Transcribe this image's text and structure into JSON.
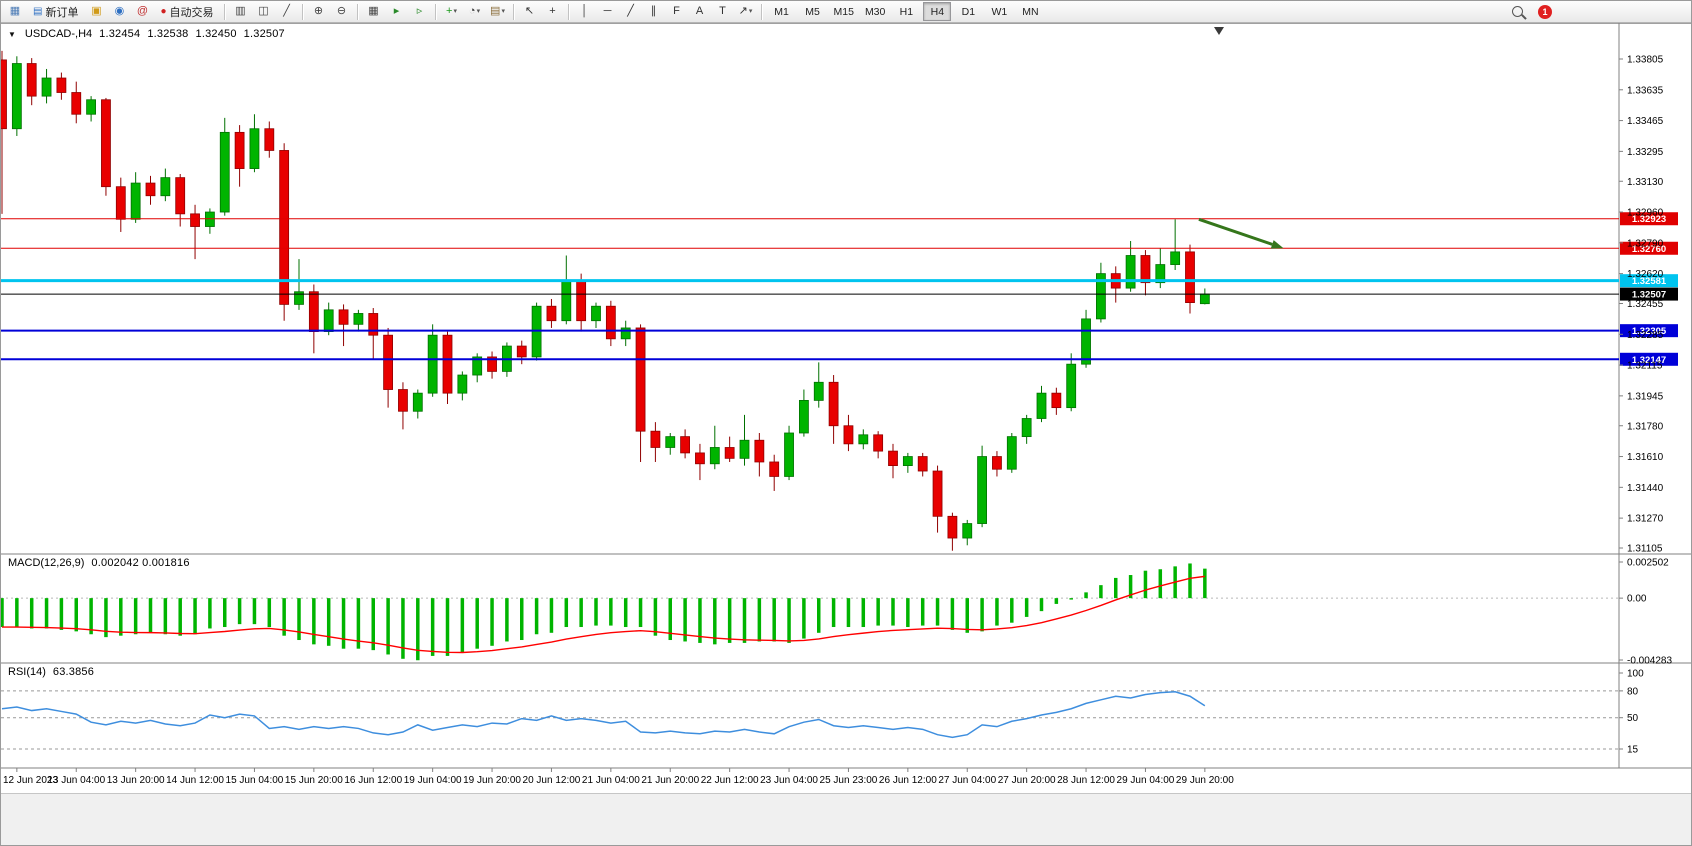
{
  "toolbar": {
    "new_order_label": "新订单",
    "autotrading_label": "自动交易",
    "timeframes": [
      "M1",
      "M5",
      "M15",
      "M30",
      "H1",
      "H4",
      "D1",
      "W1",
      "MN"
    ],
    "active_timeframe": "H4",
    "notification_count": "1",
    "items": [
      {
        "type": "icon",
        "name": "new-chart-icon",
        "glyph": "▦",
        "color": "#4a7ab5"
      },
      {
        "type": "labeled",
        "name": "new-order-button",
        "glyph": "▤",
        "glyph_color": "#2d6fc2",
        "label": "新订单"
      },
      {
        "type": "icon",
        "name": "mql5-community-icon",
        "glyph": "▣",
        "color": "#d09a18"
      },
      {
        "type": "icon",
        "name": "profile-icon",
        "glyph": "◉",
        "color": "#2d6fc2"
      },
      {
        "type": "icon",
        "name": "metaquotes-icon",
        "glyph": "@",
        "color": "#c03030"
      },
      {
        "type": "labeled",
        "name": "autotrading-button",
        "glyph": "●",
        "glyph_color": "#d02020",
        "label": "自动交易"
      },
      {
        "type": "sep"
      },
      {
        "type": "icon",
        "name": "bar-chart-icon",
        "glyph": "▥",
        "color": "#444444"
      },
      {
        "type": "icon",
        "name": "candlestick-chart-icon",
        "glyph": "◫",
        "color": "#444444"
      },
      {
        "type": "icon",
        "name": "line-chart-icon",
        "glyph": "╱",
        "color": "#444444"
      },
      {
        "type": "sep"
      },
      {
        "type": "icon",
        "name": "zoom-in-icon",
        "glyph": "⊕",
        "color": "#444444"
      },
      {
        "type": "icon",
        "name": "zoom-out-icon",
        "glyph": "⊖",
        "color": "#444444"
      },
      {
        "type": "sep"
      },
      {
        "type": "icon",
        "name": "tile-windows-icon",
        "glyph": "▦",
        "color": "#444444"
      },
      {
        "type": "icon",
        "name": "auto-scroll-icon",
        "glyph": "▸",
        "color": "#2a8a2a"
      },
      {
        "type": "icon",
        "name": "chart-shift-icon",
        "glyph": "▹",
        "color": "#2a8a2a"
      },
      {
        "type": "sep"
      },
      {
        "type": "icon",
        "name": "indicators-icon",
        "glyph": "+",
        "color": "#1a9a1a",
        "dropdown": true
      },
      {
        "type": "icon",
        "name": "periods-icon",
        "glyph": "◔",
        "color": "#444444",
        "dropdown": true
      },
      {
        "type": "icon",
        "name": "templates-icon",
        "glyph": "▤",
        "color": "#8a6d3b",
        "dropdown": true
      },
      {
        "type": "sep"
      },
      {
        "type": "icon",
        "name": "cursor-icon",
        "glyph": "↖",
        "color": "#333333"
      },
      {
        "type": "icon",
        "name": "crosshair-icon",
        "glyph": "+",
        "color": "#333333"
      },
      {
        "type": "sep"
      },
      {
        "type": "icon",
        "name": "vertical-line-icon",
        "glyph": "│",
        "color": "#333333"
      },
      {
        "type": "icon",
        "name": "horizontal-line-icon",
        "glyph": "─",
        "color": "#333333"
      },
      {
        "type": "icon",
        "name": "trendline-icon",
        "glyph": "╱",
        "color": "#333333"
      },
      {
        "type": "icon",
        "name": "equidistant-channel-icon",
        "glyph": "∥",
        "color": "#333333"
      },
      {
        "type": "icon",
        "name": "fibonacci-icon",
        "glyph": "F",
        "color": "#333333"
      },
      {
        "type": "icon",
        "name": "text-icon",
        "glyph": "A",
        "color": "#333333"
      },
      {
        "type": "icon",
        "name": "text-label-icon",
        "glyph": "T",
        "color": "#333333"
      },
      {
        "type": "icon",
        "name": "arrows-icon",
        "glyph": "↗",
        "color": "#333333",
        "dropdown": true
      },
      {
        "type": "sep"
      },
      {
        "type": "timeframes"
      }
    ]
  },
  "chart": {
    "header": {
      "symbol_period": "USDCAD-,H4",
      "open": "1.32454",
      "high": "1.32538",
      "low": "1.32450",
      "close": "1.32507"
    },
    "macd_label": "MACD(12,26,9)",
    "macd_values": "0.002042 0.001816",
    "rsi_label": "RSI(14)",
    "rsi_value": "63.3856"
  },
  "chart_data": {
    "type": "candlestick",
    "symbol": "USDCAD-",
    "period": "H4",
    "price_range": {
      "top": 1.33805,
      "bottom": 1.31105
    },
    "price_scale_labels": [
      "1.33805",
      "1.33635",
      "1.33465",
      "1.33295",
      "1.33130",
      "1.32960",
      "1.32790",
      "1.32620",
      "1.32455",
      "1.32285",
      "1.32115",
      "1.31945",
      "1.31780",
      "1.31610",
      "1.31440",
      "1.31270",
      "1.31105"
    ],
    "time_labels": [
      "12 Jun 2023",
      "13 Jun 04:00",
      "13 Jun 20:00",
      "14 Jun 12:00",
      "15 Jun 04:00",
      "15 Jun 20:00",
      "16 Jun 12:00",
      "19 Jun 04:00",
      "19 Jun 20:00",
      "20 Jun 12:00",
      "21 Jun 04:00",
      "21 Jun 20:00",
      "22 Jun 12:00",
      "23 Jun 04:00",
      "25 Jun 23:00",
      "26 Jun 12:00",
      "27 Jun 04:00",
      "27 Jun 20:00",
      "28 Jun 12:00",
      "29 Jun 04:00",
      "29 Jun 20:00"
    ],
    "candles": [
      [
        1.338,
        1.3385,
        1.3295,
        1.3342
      ],
      [
        1.3342,
        1.3382,
        1.3338,
        1.3378
      ],
      [
        1.3378,
        1.3381,
        1.3355,
        1.336
      ],
      [
        1.336,
        1.3375,
        1.3356,
        1.337
      ],
      [
        1.337,
        1.3373,
        1.3358,
        1.3362
      ],
      [
        1.3362,
        1.3368,
        1.3345,
        1.335
      ],
      [
        1.335,
        1.336,
        1.3346,
        1.3358
      ],
      [
        1.3358,
        1.3359,
        1.3305,
        1.331
      ],
      [
        1.331,
        1.3315,
        1.3285,
        1.3292
      ],
      [
        1.3292,
        1.3318,
        1.329,
        1.3312
      ],
      [
        1.3312,
        1.3316,
        1.33,
        1.3305
      ],
      [
        1.3305,
        1.332,
        1.3302,
        1.3315
      ],
      [
        1.3315,
        1.3317,
        1.3288,
        1.3295
      ],
      [
        1.3295,
        1.33,
        1.327,
        1.3288
      ],
      [
        1.3288,
        1.3298,
        1.3284,
        1.3296
      ],
      [
        1.3296,
        1.3348,
        1.3294,
        1.334
      ],
      [
        1.334,
        1.3344,
        1.331,
        1.332
      ],
      [
        1.332,
        1.335,
        1.3318,
        1.3342
      ],
      [
        1.3342,
        1.3346,
        1.3326,
        1.333
      ],
      [
        1.333,
        1.3334,
        1.3236,
        1.3245
      ],
      [
        1.3245,
        1.327,
        1.3242,
        1.3252
      ],
      [
        1.3252,
        1.3256,
        1.3218,
        1.323
      ],
      [
        1.323,
        1.3246,
        1.3228,
        1.3242
      ],
      [
        1.3242,
        1.3245,
        1.3222,
        1.3234
      ],
      [
        1.3234,
        1.3242,
        1.323,
        1.324
      ],
      [
        1.324,
        1.3243,
        1.3215,
        1.3228
      ],
      [
        1.3228,
        1.3232,
        1.3188,
        1.3198
      ],
      [
        1.3198,
        1.3202,
        1.3176,
        1.3186
      ],
      [
        1.3186,
        1.3198,
        1.3182,
        1.3196
      ],
      [
        1.3196,
        1.3234,
        1.3194,
        1.3228
      ],
      [
        1.3228,
        1.323,
        1.319,
        1.3196
      ],
      [
        1.3196,
        1.3208,
        1.3192,
        1.3206
      ],
      [
        1.3206,
        1.3218,
        1.3202,
        1.3216
      ],
      [
        1.3216,
        1.3219,
        1.3204,
        1.3208
      ],
      [
        1.3208,
        1.3224,
        1.3205,
        1.3222
      ],
      [
        1.3222,
        1.3225,
        1.3212,
        1.3216
      ],
      [
        1.3216,
        1.3246,
        1.3214,
        1.3244
      ],
      [
        1.3244,
        1.3248,
        1.3232,
        1.3236
      ],
      [
        1.3236,
        1.3272,
        1.3234,
        1.3258
      ],
      [
        1.3258,
        1.3262,
        1.323,
        1.3236
      ],
      [
        1.3236,
        1.3246,
        1.3232,
        1.3244
      ],
      [
        1.3244,
        1.3247,
        1.3222,
        1.3226
      ],
      [
        1.3226,
        1.3236,
        1.3222,
        1.3232
      ],
      [
        1.3232,
        1.3234,
        1.3158,
        1.3175
      ],
      [
        1.3175,
        1.318,
        1.3158,
        1.3166
      ],
      [
        1.3166,
        1.3174,
        1.3162,
        1.3172
      ],
      [
        1.3172,
        1.3176,
        1.316,
        1.3163
      ],
      [
        1.3163,
        1.3168,
        1.3148,
        1.3157
      ],
      [
        1.3157,
        1.3178,
        1.3154,
        1.3166
      ],
      [
        1.3166,
        1.3172,
        1.3158,
        1.316
      ],
      [
        1.316,
        1.3184,
        1.3156,
        1.317
      ],
      [
        1.317,
        1.3174,
        1.315,
        1.3158
      ],
      [
        1.3158,
        1.3162,
        1.3142,
        1.315
      ],
      [
        1.315,
        1.3178,
        1.3148,
        1.3174
      ],
      [
        1.3174,
        1.3198,
        1.3172,
        1.3192
      ],
      [
        1.3192,
        1.3213,
        1.3188,
        1.3202
      ],
      [
        1.3202,
        1.3206,
        1.3168,
        1.3178
      ],
      [
        1.3178,
        1.3184,
        1.3164,
        1.3168
      ],
      [
        1.3168,
        1.3176,
        1.3165,
        1.3173
      ],
      [
        1.3173,
        1.3175,
        1.316,
        1.3164
      ],
      [
        1.3164,
        1.3168,
        1.3149,
        1.3156
      ],
      [
        1.3156,
        1.3163,
        1.3152,
        1.3161
      ],
      [
        1.3161,
        1.3163,
        1.315,
        1.3153
      ],
      [
        1.3153,
        1.3156,
        1.3119,
        1.3128
      ],
      [
        1.3128,
        1.313,
        1.3109,
        1.3116
      ],
      [
        1.3116,
        1.3126,
        1.3112,
        1.3124
      ],
      [
        1.3124,
        1.3167,
        1.3122,
        1.3161
      ],
      [
        1.3161,
        1.3164,
        1.315,
        1.3154
      ],
      [
        1.3154,
        1.3174,
        1.3152,
        1.3172
      ],
      [
        1.3172,
        1.3184,
        1.3168,
        1.3182
      ],
      [
        1.3182,
        1.32,
        1.318,
        1.3196
      ],
      [
        1.3196,
        1.3199,
        1.3184,
        1.3188
      ],
      [
        1.3188,
        1.3218,
        1.3186,
        1.3212
      ],
      [
        1.3212,
        1.3242,
        1.321,
        1.3237
      ],
      [
        1.3237,
        1.3268,
        1.3235,
        1.3262
      ],
      [
        1.3262,
        1.3266,
        1.3246,
        1.3254
      ],
      [
        1.3254,
        1.328,
        1.3252,
        1.3272
      ],
      [
        1.3272,
        1.3275,
        1.325,
        1.3257
      ],
      [
        1.3257,
        1.3276,
        1.3254,
        1.3267
      ],
      [
        1.3267,
        1.3292,
        1.3264,
        1.3274
      ],
      [
        1.3274,
        1.3278,
        1.324,
        1.3246
      ],
      [
        1.32454,
        1.32538,
        1.3245,
        1.32507
      ]
    ],
    "hlines": [
      {
        "price": 1.32923,
        "label": "1.32923",
        "color": "#e00000",
        "width": 1
      },
      {
        "price": 1.3276,
        "label": "1.32760",
        "color": "#e00000",
        "width": 1
      },
      {
        "price": 1.32581,
        "label": "1.32581",
        "color": "#00c4ef",
        "width": 3
      },
      {
        "price": 1.32507,
        "label": "1.32507",
        "color": "#000000",
        "width": 1
      },
      {
        "price": 1.32305,
        "label": "1.32305",
        "color": "#0000d8",
        "width": 2
      },
      {
        "price": 1.32147,
        "label": "1.32147",
        "color": "#0000d8",
        "width": 2
      }
    ],
    "arrow_annotation": {
      "from_bar": 80.6,
      "from_price": 1.3292,
      "to_bar": 86.3,
      "to_price": 1.3276,
      "color": "#35761b"
    },
    "colors": {
      "up": "#00b400",
      "up_border": "#007000",
      "down": "#e80000",
      "down_border": "#900000",
      "macd_histogram": "#00b400",
      "macd_signal": "#ff0000",
      "rsi_line": "#3e8ede"
    },
    "macd": {
      "params": "12,26,9",
      "current": 0.002042,
      "signal_current": 0.001816,
      "scale_top": 0.002502,
      "scale_bottom": -0.004283,
      "scale_labels": [
        "0.002502",
        "0.00",
        "-0.004283"
      ],
      "values": [
        -0.002,
        -0.002,
        -0.0021,
        -0.0021,
        -0.0022,
        -0.0023,
        -0.0025,
        -0.0027,
        -0.0026,
        -0.0025,
        -0.0024,
        -0.0025,
        -0.0026,
        -0.0025,
        -0.0021,
        -0.002,
        -0.0018,
        -0.0018,
        -0.002,
        -0.0026,
        -0.0029,
        -0.0032,
        -0.0033,
        -0.0035,
        -0.0035,
        -0.0036,
        -0.0039,
        -0.0042,
        -0.0043,
        -0.004,
        -0.004,
        -0.0038,
        -0.0035,
        -0.0033,
        -0.003,
        -0.0029,
        -0.0025,
        -0.0024,
        -0.002,
        -0.002,
        -0.0019,
        -0.0019,
        -0.002,
        -0.002,
        -0.0026,
        -0.0029,
        -0.003,
        -0.0031,
        -0.0032,
        -0.0031,
        -0.0031,
        -0.003,
        -0.003,
        -0.0031,
        -0.0028,
        -0.0024,
        -0.002,
        -0.002,
        -0.002,
        -0.0019,
        -0.0019,
        -0.002,
        -0.0019,
        -0.0019,
        -0.0022,
        -0.0024,
        -0.0023,
        -0.0019,
        -0.0017,
        -0.0013,
        -0.0009,
        -0.0004,
        -0.0001,
        0.0004,
        0.0009,
        0.0014,
        0.0016,
        0.0019,
        0.002,
        0.0022,
        0.0024,
        0.002042
      ]
    },
    "rsi": {
      "period": 14,
      "current": 63.3856,
      "levels": [
        80,
        50,
        15
      ],
      "scale_labels": [
        "100",
        "80",
        "50",
        "15"
      ],
      "values": [
        60,
        62,
        58,
        60,
        57,
        54,
        45,
        42,
        46,
        44,
        47,
        43,
        41,
        44,
        53,
        50,
        54,
        52,
        38,
        40,
        37,
        40,
        38,
        40,
        38,
        33,
        31,
        34,
        42,
        36,
        39,
        42,
        40,
        44,
        43,
        49,
        47,
        52,
        47,
        49,
        47,
        44,
        46,
        34,
        33,
        35,
        33,
        32,
        35,
        34,
        37,
        34,
        32,
        40,
        45,
        48,
        41,
        39,
        41,
        39,
        37,
        39,
        37,
        31,
        28,
        31,
        42,
        40,
        46,
        49,
        53,
        56,
        60,
        66,
        70,
        74,
        72,
        76,
        78,
        79,
        74,
        63.3856
      ]
    }
  }
}
